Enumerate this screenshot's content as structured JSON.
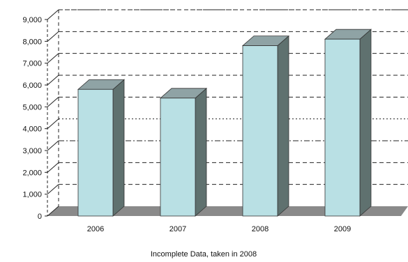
{
  "chart_data": {
    "type": "bar",
    "title": "",
    "xlabel": "",
    "ylabel": "",
    "categories": [
      "2006",
      "2007",
      "2008",
      "2009"
    ],
    "values": [
      5800,
      5400,
      7800,
      8100
    ],
    "ylim": [
      0,
      9000
    ],
    "yticks": [
      0,
      1000,
      2000,
      3000,
      4000,
      5000,
      6000,
      7000,
      8000,
      9000
    ],
    "ytick_labels": [
      "0",
      "1,000",
      "2,000",
      "3,000",
      "4,000",
      "5,000",
      "6,000",
      "7,000",
      "8,000",
      "9,000"
    ],
    "grid": true,
    "legend": "none",
    "style": "3d-bars",
    "colors": {
      "bar_front": "#b9e0e4",
      "bar_top": "#8fa3a5",
      "bar_side": "#5f716f",
      "floor": "#8a8a8a",
      "grid": "#222222"
    }
  },
  "footnote": "Incomplete Data, taken in 2008"
}
